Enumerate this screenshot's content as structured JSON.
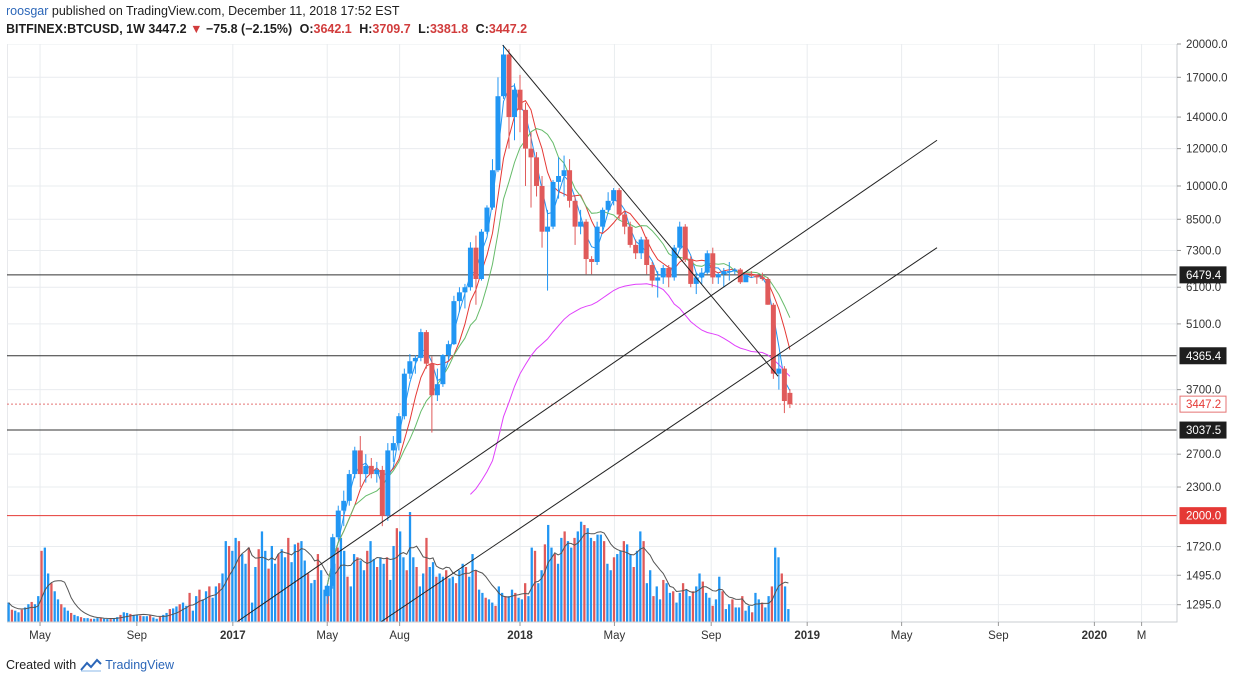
{
  "header": {
    "user": "roosgar",
    "published": "published on TradingView.com, December 11, 2018 17:52 EST",
    "symbol": "BITFINEX:BTCUSD, 1W",
    "last": "3447.2",
    "change": "−75.8 (−2.15%)",
    "o_label": "O:",
    "o_value": "3642.1",
    "h_label": "H:",
    "h_value": "3709.7",
    "l_label": "L:",
    "l_value": "3381.8",
    "c_label": "C:",
    "c_value": "3447.2"
  },
  "footer": {
    "created_with": "Created with",
    "brand": "TradingView"
  },
  "colors": {
    "up": "#2196f3",
    "down": "#e05a5a",
    "ma_fast": "#2196f3",
    "ma_mid": "#e53935",
    "ma_slow": "#66bb6a",
    "ma_long": "#e040fb",
    "vol_ma": "#555555"
  },
  "chart_data": {
    "type": "candlestick",
    "scale": "log",
    "ylim": [
      1190,
      20000
    ],
    "xlim": [
      "2016-03-20",
      "2020-04-15"
    ],
    "price_ticks": [
      "20000.0",
      "17000.0",
      "14000.0",
      "12000.0",
      "10000.0",
      "8500.0",
      "7300.0",
      "6100.0",
      "5100.0",
      "3700.0",
      "2700.0",
      "2300.0",
      "1720.0",
      "1495.0",
      "1295.0"
    ],
    "x_ticks": [
      {
        "label": "May",
        "date": "2016-05-01"
      },
      {
        "label": "Sep",
        "date": "2016-09-01"
      },
      {
        "label": "2017",
        "date": "2017-01-01"
      },
      {
        "label": "May",
        "date": "2017-05-01"
      },
      {
        "label": "Aug",
        "date": "2017-08-01"
      },
      {
        "label": "2018",
        "date": "2018-01-01"
      },
      {
        "label": "May",
        "date": "2018-05-01"
      },
      {
        "label": "Sep",
        "date": "2018-09-01"
      },
      {
        "label": "2019",
        "date": "2019-01-01"
      },
      {
        "label": "May",
        "date": "2019-05-01"
      },
      {
        "label": "Sep",
        "date": "2019-09-01"
      },
      {
        "label": "2020",
        "date": "2020-01-01"
      },
      {
        "label": "M",
        "date": "2020-03-01"
      }
    ],
    "level_labels": [
      {
        "text": "6479.4",
        "value": 6479.4,
        "style": "dark"
      },
      {
        "text": "4365.4",
        "value": 4365.4,
        "style": "dark"
      },
      {
        "text": "3447.2",
        "value": 3447.2,
        "style": "last"
      },
      {
        "text": "3037.5",
        "value": 3037.5,
        "style": "dark"
      },
      {
        "text": "2000.0",
        "value": 2000.0,
        "style": "red"
      }
    ],
    "horizontal_lines": [
      {
        "value": 6479.4,
        "color": "#333333"
      },
      {
        "value": 4365.4,
        "color": "#333333"
      },
      {
        "value": 3037.5,
        "color": "#333333"
      },
      {
        "value": 2000.0,
        "color": "#e53935"
      },
      {
        "value": 3447.2,
        "color": "#e57373",
        "dotted": true
      }
    ],
    "trend_lines": [
      {
        "from": [
          "2017-12-10",
          19900
        ],
        "to": [
          "2018-11-25",
          3950
        ]
      },
      {
        "from": [
          "2017-01-06",
          1190
        ],
        "to": [
          "2019-06-15",
          12500
        ]
      },
      {
        "from": [
          "2017-07-08",
          1190
        ],
        "to": [
          "2019-06-15",
          7400
        ]
      }
    ],
    "candles": [
      [
        "2017-05-01",
        1350,
        1430,
        1300,
        1420
      ],
      [
        "2017-05-08",
        1420,
        1830,
        1400,
        1800
      ],
      [
        "2017-05-15",
        1800,
        2100,
        1780,
        2050
      ],
      [
        "2017-05-22",
        2050,
        2260,
        1900,
        2150
      ],
      [
        "2017-05-29",
        2150,
        2500,
        2100,
        2450
      ],
      [
        "2017-06-05",
        2450,
        2800,
        2400,
        2750
      ],
      [
        "2017-06-12",
        2750,
        2950,
        2300,
        2450
      ],
      [
        "2017-06-19",
        2450,
        2700,
        2350,
        2550
      ],
      [
        "2017-06-26",
        2550,
        2650,
        2400,
        2450
      ],
      [
        "2017-07-03",
        2450,
        2600,
        2350,
        2500
      ],
      [
        "2017-07-10",
        2500,
        2550,
        1900,
        2000
      ],
      [
        "2017-07-17",
        2000,
        2850,
        1950,
        2750
      ],
      [
        "2017-07-24",
        2750,
        2950,
        2600,
        2850
      ],
      [
        "2017-07-31",
        2850,
        3300,
        2750,
        3250
      ],
      [
        "2017-08-07",
        3250,
        4100,
        3200,
        4000
      ],
      [
        "2017-08-14",
        4000,
        4400,
        3900,
        4250
      ],
      [
        "2017-08-21",
        4250,
        4380,
        4000,
        4320
      ],
      [
        "2017-08-28",
        4320,
        4980,
        4250,
        4900
      ],
      [
        "2017-09-04",
        4900,
        4950,
        4100,
        4200
      ],
      [
        "2017-09-11",
        4200,
        4350,
        3000,
        3600
      ],
      [
        "2017-09-18",
        3600,
        4100,
        3500,
        3800
      ],
      [
        "2017-09-25",
        3800,
        4400,
        3750,
        4380
      ],
      [
        "2017-10-02",
        4380,
        4700,
        4300,
        4620
      ],
      [
        "2017-10-09",
        4620,
        5850,
        4600,
        5700
      ],
      [
        "2017-10-16",
        5700,
        6100,
        5400,
        5950
      ],
      [
        "2017-10-23",
        5950,
        6200,
        5500,
        6100
      ],
      [
        "2017-10-30",
        6100,
        7600,
        6000,
        7400
      ],
      [
        "2017-11-06",
        7400,
        7850,
        5600,
        6350
      ],
      [
        "2017-11-13",
        6350,
        8100,
        6300,
        8000
      ],
      [
        "2017-11-20",
        8000,
        9100,
        7900,
        9000
      ],
      [
        "2017-11-27",
        9000,
        11400,
        8900,
        10800
      ],
      [
        "2017-12-04",
        10800,
        17000,
        10700,
        15500
      ],
      [
        "2017-12-11",
        15500,
        19900,
        15300,
        19000
      ],
      [
        "2017-12-18",
        19000,
        19500,
        12000,
        14000
      ],
      [
        "2017-12-25",
        14000,
        16500,
        12500,
        16000
      ],
      [
        "2018-01-01",
        16000,
        17200,
        13000,
        14500
      ],
      [
        "2018-01-08",
        14500,
        15000,
        10000,
        12000
      ],
      [
        "2018-01-15",
        12000,
        13000,
        9000,
        11500
      ],
      [
        "2018-01-22",
        11500,
        11800,
        9500,
        10000
      ],
      [
        "2018-01-29",
        10000,
        10500,
        7400,
        8000
      ],
      [
        "2018-02-05",
        8000,
        8900,
        6000,
        8200
      ],
      [
        "2018-02-12",
        8200,
        10300,
        8100,
        10200
      ],
      [
        "2018-02-19",
        10200,
        11500,
        9400,
        10500
      ],
      [
        "2018-02-26",
        10500,
        11600,
        9500,
        10800
      ],
      [
        "2018-03-05",
        10800,
        11400,
        9000,
        9300
      ],
      [
        "2018-03-12",
        9300,
        9500,
        7500,
        8200
      ],
      [
        "2018-03-19",
        8200,
        8900,
        7900,
        8400
      ],
      [
        "2018-03-26",
        8400,
        8500,
        6500,
        7000
      ],
      [
        "2018-04-02",
        7000,
        7100,
        6500,
        6900
      ],
      [
        "2018-04-09",
        6900,
        8400,
        6800,
        8200
      ],
      [
        "2018-04-16",
        8200,
        9000,
        8000,
        8900
      ],
      [
        "2018-04-23",
        8900,
        9700,
        8800,
        9300
      ],
      [
        "2018-04-30",
        9300,
        9900,
        9100,
        9800
      ],
      [
        "2018-05-07",
        9800,
        9900,
        8500,
        8700
      ],
      [
        "2018-05-14",
        8700,
        8800,
        7900,
        8200
      ],
      [
        "2018-05-21",
        8200,
        8400,
        7400,
        7500
      ],
      [
        "2018-05-28",
        7500,
        7700,
        7000,
        7200
      ],
      [
        "2018-06-04",
        7200,
        7800,
        7000,
        7700
      ],
      [
        "2018-06-11",
        7700,
        7800,
        6500,
        6800
      ],
      [
        "2018-06-18",
        6800,
        6900,
        6100,
        6300
      ],
      [
        "2018-06-25",
        6300,
        6600,
        5800,
        6400
      ],
      [
        "2018-07-02",
        6400,
        6800,
        6200,
        6700
      ],
      [
        "2018-07-09",
        6700,
        6800,
        6100,
        6400
      ],
      [
        "2018-07-16",
        6400,
        7500,
        6300,
        7400
      ],
      [
        "2018-07-23",
        7400,
        8400,
        7300,
        8200
      ],
      [
        "2018-07-30",
        8200,
        8300,
        6900,
        7000
      ],
      [
        "2018-08-06",
        7000,
        7100,
        6100,
        6200
      ],
      [
        "2018-08-13",
        6200,
        6550,
        5900,
        6400
      ],
      [
        "2018-08-20",
        6400,
        6700,
        6200,
        6550
      ],
      [
        "2018-08-27",
        6550,
        7300,
        6500,
        7200
      ],
      [
        "2018-09-03",
        7200,
        7400,
        6200,
        6400
      ],
      [
        "2018-09-10",
        6400,
        6550,
        6200,
        6500
      ],
      [
        "2018-09-17",
        6500,
        6700,
        6100,
        6600
      ],
      [
        "2018-09-24",
        6600,
        6900,
        6300,
        6600
      ],
      [
        "2018-10-01",
        6600,
        6700,
        6500,
        6650
      ],
      [
        "2018-10-08",
        6650,
        6700,
        6200,
        6250
      ],
      [
        "2018-10-15",
        6250,
        6500,
        6400,
        6480
      ],
      [
        "2018-10-22",
        6480,
        6600,
        6400,
        6450
      ],
      [
        "2018-10-29",
        6450,
        6500,
        6200,
        6400
      ],
      [
        "2018-11-05",
        6400,
        6550,
        6300,
        6350
      ],
      [
        "2018-11-12",
        6350,
        6400,
        5600,
        5600
      ],
      [
        "2018-11-19",
        5600,
        5650,
        3900,
        4000
      ],
      [
        "2018-11-26",
        4000,
        4400,
        3700,
        4100
      ],
      [
        "2018-12-03",
        4100,
        4150,
        3300,
        3500
      ],
      [
        "2018-12-10",
        3642.1,
        3709.7,
        3381.8,
        3447.2
      ]
    ],
    "volume_bars": [
      60,
      38,
      35,
      30,
      38,
      45,
      55,
      62,
      55,
      80,
      220,
      230,
      150,
      120,
      95,
      70,
      55,
      45,
      35,
      28,
      22,
      18,
      15,
      12,
      12,
      10,
      10,
      12,
      14,
      10,
      9,
      9,
      12,
      15,
      22,
      30,
      28,
      25,
      22,
      22,
      20,
      18,
      18,
      20,
      14,
      10,
      16,
      22,
      28,
      40,
      42,
      48,
      55,
      60,
      50,
      90,
      35,
      80,
      100,
      70,
      95,
      110,
      75,
      110,
      120,
      150,
      250,
      235,
      220,
      260,
      250,
      210,
      180,
      230,
      60,
      170,
      225,
      280,
      220,
      165,
      235,
      180,
      210,
      225,
      200,
      260,
      185,
      240,
      245,
      250,
      190,
      150,
      120,
      130,
      210,
      160,
      100,
      110,
      150,
      180,
      230,
      260,
      220,
      140,
      110,
      210,
      200,
      190,
      160,
      220,
      250,
      195,
      170,
      200,
      180,
      200,
      130,
      235,
      290,
      280,
      200,
      160,
      340,
      200,
      170,
      110,
      150,
      260,
      170,
      185,
      140,
      150,
      140,
      160,
      135,
      140,
      120,
      160,
      180,
      170,
      140,
      210,
      160,
      100,
      90,
      75,
      70,
      60,
      50,
      110,
      90,
      80,
      80,
      100,
      90,
      75,
      70,
      120,
      80,
      230,
      220,
      120,
      160,
      240,
      300,
      230,
      210,
      180,
      260,
      280,
      250,
      230,
      260,
      280,
      310,
      300,
      290,
      260,
      250,
      270,
      270,
      250,
      180,
      160,
      200,
      210,
      220,
      250,
      240,
      210,
      170,
      220,
      280,
      250,
      120,
      160,
      80,
      110,
      70,
      130,
      120,
      90,
      95,
      60,
      90,
      120,
      100,
      80,
      95,
      110,
      150,
      125,
      90,
      75,
      50,
      70,
      140,
      95,
      40,
      55,
      70,
      45,
      45,
      80,
      35,
      50,
      30,
      90,
      70,
      60,
      45,
      80,
      110,
      230,
      200,
      150,
      110,
      40
    ],
    "volume_colors_note": "alternating per weekly close"
  }
}
